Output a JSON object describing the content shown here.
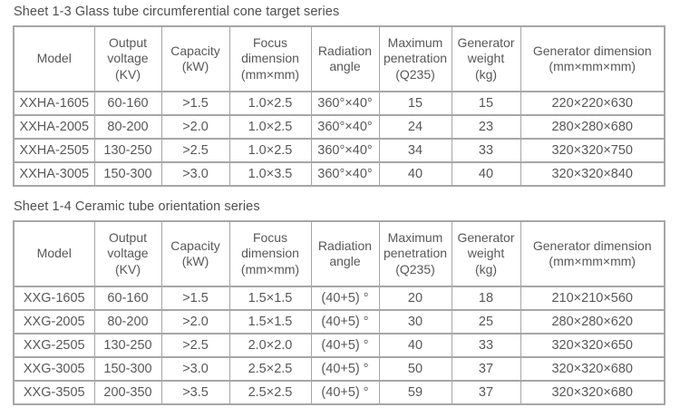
{
  "styles": {
    "background": "#ffffff",
    "text_color": "#58585a",
    "title_color": "#4f4f51",
    "border_color": "#a6a6a6"
  },
  "tables": [
    {
      "title": "Sheet 1-3 Glass tube circumferential cone target series",
      "headers": [
        {
          "lines": [
            "Model"
          ]
        },
        {
          "lines": [
            "Output",
            "voltage",
            "(KV)"
          ]
        },
        {
          "lines": [
            "Capacity",
            "(kW)"
          ]
        },
        {
          "lines": [
            "Focus",
            "dimension",
            "(mm×mm)"
          ]
        },
        {
          "lines": [
            "Radiation",
            "angle"
          ]
        },
        {
          "lines": [
            "Maximum",
            "penetration",
            "(Q235)"
          ]
        },
        {
          "lines": [
            "Generator",
            "weight",
            "(kg)"
          ]
        },
        {
          "lines": [
            "Generator dimension",
            "(mm×mm×mm)"
          ]
        }
      ],
      "rows": [
        [
          "XXHA-1605",
          "60-160",
          ">1.5",
          "1.0×2.5",
          "360°×40°",
          "15",
          "15",
          "220×220×630"
        ],
        [
          "XXHA-2005",
          "80-200",
          ">2.0",
          "1.0×2.5",
          "360°×40°",
          "24",
          "23",
          "280×280×680"
        ],
        [
          "XXHA-2505",
          "130-250",
          ">2.5",
          "1.0×2.5",
          "360°×40°",
          "34",
          "33",
          "320×320×750"
        ],
        [
          "XXHA-3005",
          "150-300",
          ">3.0",
          "1.0×3.5",
          "360°×40°",
          "40",
          "40",
          "320×320×840"
        ]
      ]
    },
    {
      "title": "Sheet 1-4 Ceramic tube orientation series",
      "headers": [
        {
          "lines": [
            "Model"
          ]
        },
        {
          "lines": [
            "Output",
            "voltage",
            "(KV)"
          ]
        },
        {
          "lines": [
            "Capacity",
            "(kW)"
          ]
        },
        {
          "lines": [
            "Focus",
            "dimension",
            "(mm×mm)"
          ]
        },
        {
          "lines": [
            "Radiation",
            "angle"
          ]
        },
        {
          "lines": [
            "Maximum",
            "penetration",
            "(Q235)"
          ]
        },
        {
          "lines": [
            "Generator",
            "weight",
            "(kg)"
          ]
        },
        {
          "lines": [
            "Generator dimension",
            "(mm×mm×mm)"
          ]
        }
      ],
      "rows": [
        [
          "XXG-1605",
          "60-160",
          ">1.5",
          "1.5×1.5",
          "(40+5) °",
          "20",
          "18",
          "210×210×560"
        ],
        [
          "XXG-2005",
          "80-200",
          ">2.0",
          "1.5×1.5",
          "(40+5) °",
          "30",
          "25",
          "280×280×620"
        ],
        [
          "XXG-2505",
          "130-250",
          ">2.5",
          "2.0×2.0",
          "(40+5) °",
          "40",
          "33",
          "320×320×650"
        ],
        [
          "XXG-3005",
          "150-300",
          ">3.0",
          "2.5×2.5",
          "(40+5) °",
          "50",
          "37",
          "320×320×680"
        ],
        [
          "XXG-3505",
          "200-350",
          ">3.5",
          "2.5×2.5",
          "(40+5) °",
          "59",
          "37",
          "320×320×680"
        ]
      ]
    }
  ]
}
